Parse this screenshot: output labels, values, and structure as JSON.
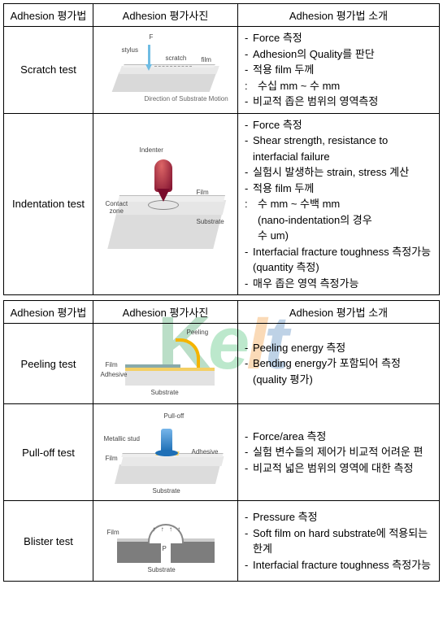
{
  "headers": {
    "method": "Adhesion 평가법",
    "photo": "Adhesion 평가사진",
    "intro": "Adhesion 평가법 소개"
  },
  "watermark": {
    "k": "K",
    "e": "e",
    "i": "I",
    "t": "t"
  },
  "table1": {
    "rows": [
      {
        "name": "Scratch test",
        "diagram": {
          "stylus": "stylus",
          "force": "F",
          "scratch": "scratch",
          "film": "film",
          "direction": "Direction of\nSubstrate Motion"
        },
        "desc": [
          {
            "t": "Force 측정"
          },
          {
            "t": "Adhesion의 Quality를 판단"
          },
          {
            "t": "적용 film 두께"
          },
          {
            "t": "수십 mm ~ 수 mm",
            "cls": "sub"
          },
          {
            "t": "비교적 좁은 범위의 영역측정"
          }
        ]
      },
      {
        "name": "Indentation test",
        "diagram": {
          "indenter": "Indenter",
          "film": "Film",
          "contact": "Contact\nzone",
          "substrate": "Substrate"
        },
        "desc": [
          {
            "t": "Force 측정"
          },
          {
            "t": "Shear strength, resistance to interfacial failure"
          },
          {
            "t": "실험시 발생하는 strain, stress 계산"
          },
          {
            "t": "적용 film 두께"
          },
          {
            "t": "수 mm ~ 수백 mm",
            "cls": "sub"
          },
          {
            "t": "(nano-indentation의 경우",
            "cls": "sub2"
          },
          {
            "t": " 수 um)",
            "cls": "sub2"
          },
          {
            "t": " Interfacial fracture toughness 측정가능(quantity 측정)"
          },
          {
            "t": "매우 좁은 영역 측정가능"
          }
        ]
      }
    ]
  },
  "table2": {
    "rows": [
      {
        "name": "Peeling test",
        "diagram": {
          "peeling": "Peeling",
          "film": "Film",
          "adhesive": "Adhesive",
          "substrate": "Substrate"
        },
        "desc": [
          {
            "t": "Peeling energy 측정"
          },
          {
            "t": "Bending energy가 포함되어 측정(quality 평가)"
          }
        ]
      },
      {
        "name": "Pull-off test",
        "diagram": {
          "pulloff": "Pull-off",
          "stud": "Metallic stud",
          "film": "Film",
          "adhesive": "Adhesive",
          "substrate": "Substrate"
        },
        "desc": [
          {
            "t": "Force/area 측정"
          },
          {
            "t": "실험 변수들의 제어가 비교적 어려운 편"
          },
          {
            "t": " 비교적 넓은 범위의 영역에 대한 측정"
          }
        ]
      },
      {
        "name": "Blister test",
        "diagram": {
          "film": "Film",
          "p": "P",
          "substrate": "Substrate"
        },
        "desc": [
          {
            "t": "Pressure 측정"
          },
          {
            "t": " Soft film on hard substrate에 적용되는 한계"
          },
          {
            "t": "Interfacial fracture toughness 측정가능"
          }
        ]
      }
    ]
  }
}
